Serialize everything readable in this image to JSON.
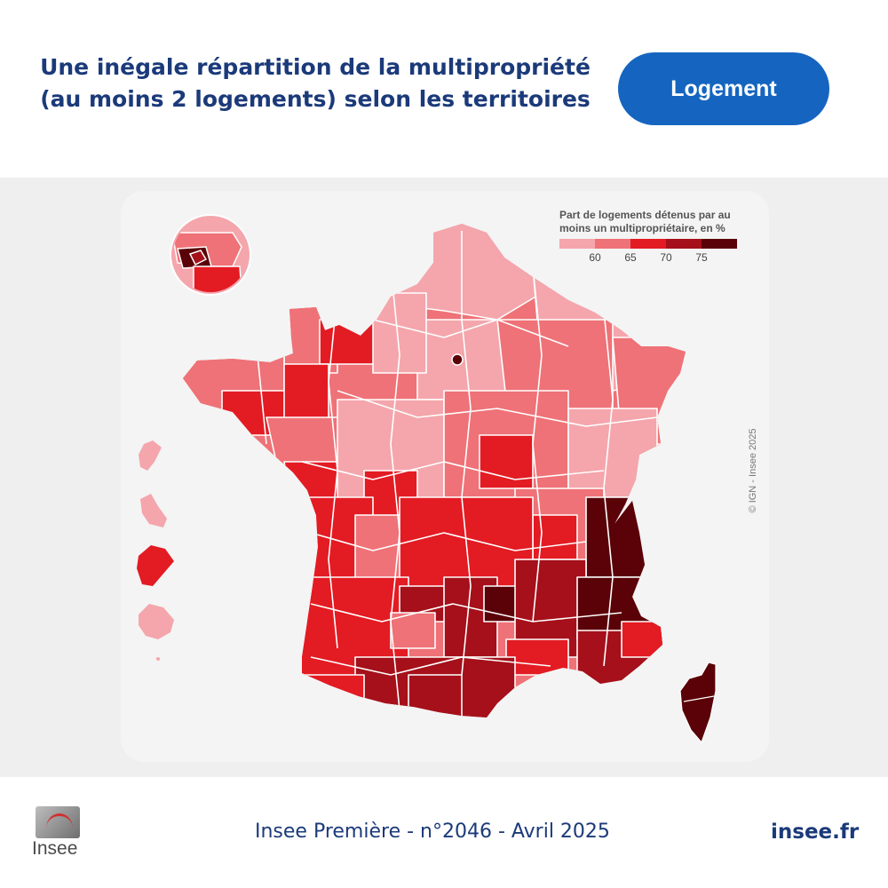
{
  "header": {
    "title_line1": "Une inégale répartition de la multipropriété",
    "title_line2": "(au moins 2 logements) selon les territoires",
    "tag_label": "Logement"
  },
  "map": {
    "legend_title_line1": "Part de logements détenus par au",
    "legend_title_line2": "moins un multipropriétaire, en %",
    "legend_classes": [
      {
        "label": "< 60",
        "color": "#f4a6ac"
      },
      {
        "label": "60–65",
        "color": "#ee7277"
      },
      {
        "label": "65–70",
        "color": "#e31b23"
      },
      {
        "label": "70–75",
        "color": "#a5101a"
      },
      {
        "label": "≥ 75",
        "color": "#5a0208"
      }
    ],
    "legend_ticks": [
      "60",
      "65",
      "70",
      "75"
    ],
    "copyright": "© IGN - Insee 2025"
  },
  "footer": {
    "logo_text": "Insee",
    "publication": "Insee Première - n°2046 - Avril 2025",
    "site": "insee.fr"
  }
}
